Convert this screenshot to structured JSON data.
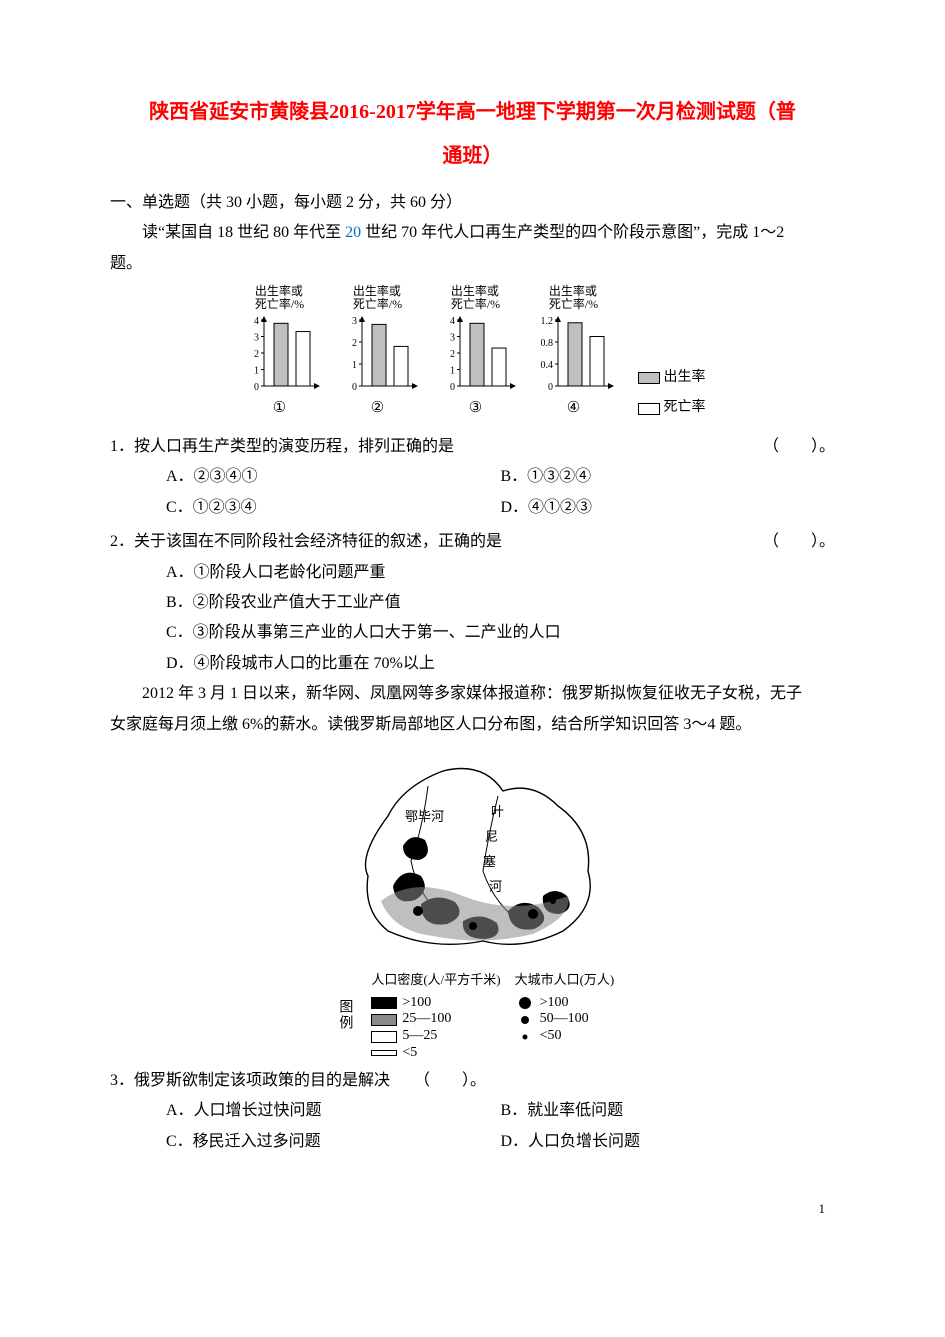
{
  "title_line1": "陕西省延安市黄陵县2016-2017学年高一地理下学期第一次月检测试题（普",
  "title_line2": "通班）",
  "section1": "一、单选题（共 30 小题，每小题 2 分，共 60 分）",
  "intro1_a": "读“某国自 18 世纪 80 年代至 ",
  "intro1_mid_blue": "20",
  "intro1_b": " 世纪 70 年代人口再生产类型的四个阶段示意图”，完成 1～2",
  "intro1_c": "题。",
  "chart": {
    "axis_title_1": "出生率或",
    "axis_title_2": "死亡率/%",
    "legend_birth": "出生率",
    "legend_death": "死亡率",
    "bar_colors": {
      "birth": "#bfbfbf",
      "death": "#ffffff",
      "stroke": "#000000"
    },
    "panels": [
      {
        "label": "①",
        "ticks": [
          0,
          1,
          2,
          3,
          4
        ],
        "ymax": 4,
        "birth": 3.8,
        "death": 3.3
      },
      {
        "label": "②",
        "ticks": [
          0,
          1,
          2,
          3
        ],
        "ymax": 3,
        "birth": 2.8,
        "death": 1.8
      },
      {
        "label": "③",
        "ticks": [
          0,
          1,
          2,
          3,
          4
        ],
        "ymax": 4,
        "birth": 3.8,
        "death": 2.3
      },
      {
        "label": "④",
        "ticks": [
          0,
          0.4,
          0.8,
          1.2
        ],
        "ymax": 1.2,
        "birth": 1.15,
        "death": 0.9
      }
    ]
  },
  "q1": {
    "stem": "1．按人口再生产类型的演变历程，排列正确的是",
    "paren": "（　　）。",
    "opts": {
      "A": "A．②③④①",
      "B": "B．①③②④",
      "C": "C．①②③④",
      "D": "D．④①②③"
    }
  },
  "q2": {
    "stem": "2．关于该国在不同阶段社会经济特征的叙述，正确的是",
    "paren": "（　　）。",
    "opts": {
      "A": "A．①阶段人口老龄化问题严重",
      "B": "B．②阶段农业产值大于工业产值",
      "C": "C．③阶段从事第三产业的人口大于第一、二产业的人口",
      "D": "D．④阶段城市人口的比重在 70%以上"
    }
  },
  "intro2_a": "2012 年 3 月 1 日以来，新华网、凤凰网等多家媒体报道称：俄罗斯拟恢复征收无子女税，无子",
  "intro2_b": "女家庭每月须上缴 6%的薪水。读俄罗斯局部地区人口分布图，结合所学知识回答 3～4 题。",
  "map": {
    "river1": "鄂毕河",
    "river2_1": "叶",
    "river2_2": "尼",
    "river2_3": "塞",
    "river2_4": "河",
    "legend_title_left": "人口密度(人/平方千米)",
    "legend_title_right": "大城市人口(万人)",
    "legend_side": "图例",
    "density": [
      {
        "fill": "#000000",
        "label": ">100"
      },
      {
        "fill": "#8a8a8a",
        "label": "25—100"
      },
      {
        "fill": "#ffffff",
        "label": "5—25"
      },
      {
        "fill": "#ffffff",
        "label": "<5",
        "thin": true
      }
    ],
    "city": [
      {
        "r": 6,
        "label": ">100"
      },
      {
        "r": 4,
        "label": "50—100"
      },
      {
        "r": 2.5,
        "label": "<50"
      }
    ]
  },
  "q3": {
    "stem": "3．俄罗斯欲制定该项政策的目的是解决　　（　　）。",
    "opts": {
      "A": "A．人口增长过快问题",
      "B": "B．就业率低问题",
      "C": "C．移民迁入过多问题",
      "D": "D．人口负增长问题"
    }
  },
  "page_number": "1"
}
